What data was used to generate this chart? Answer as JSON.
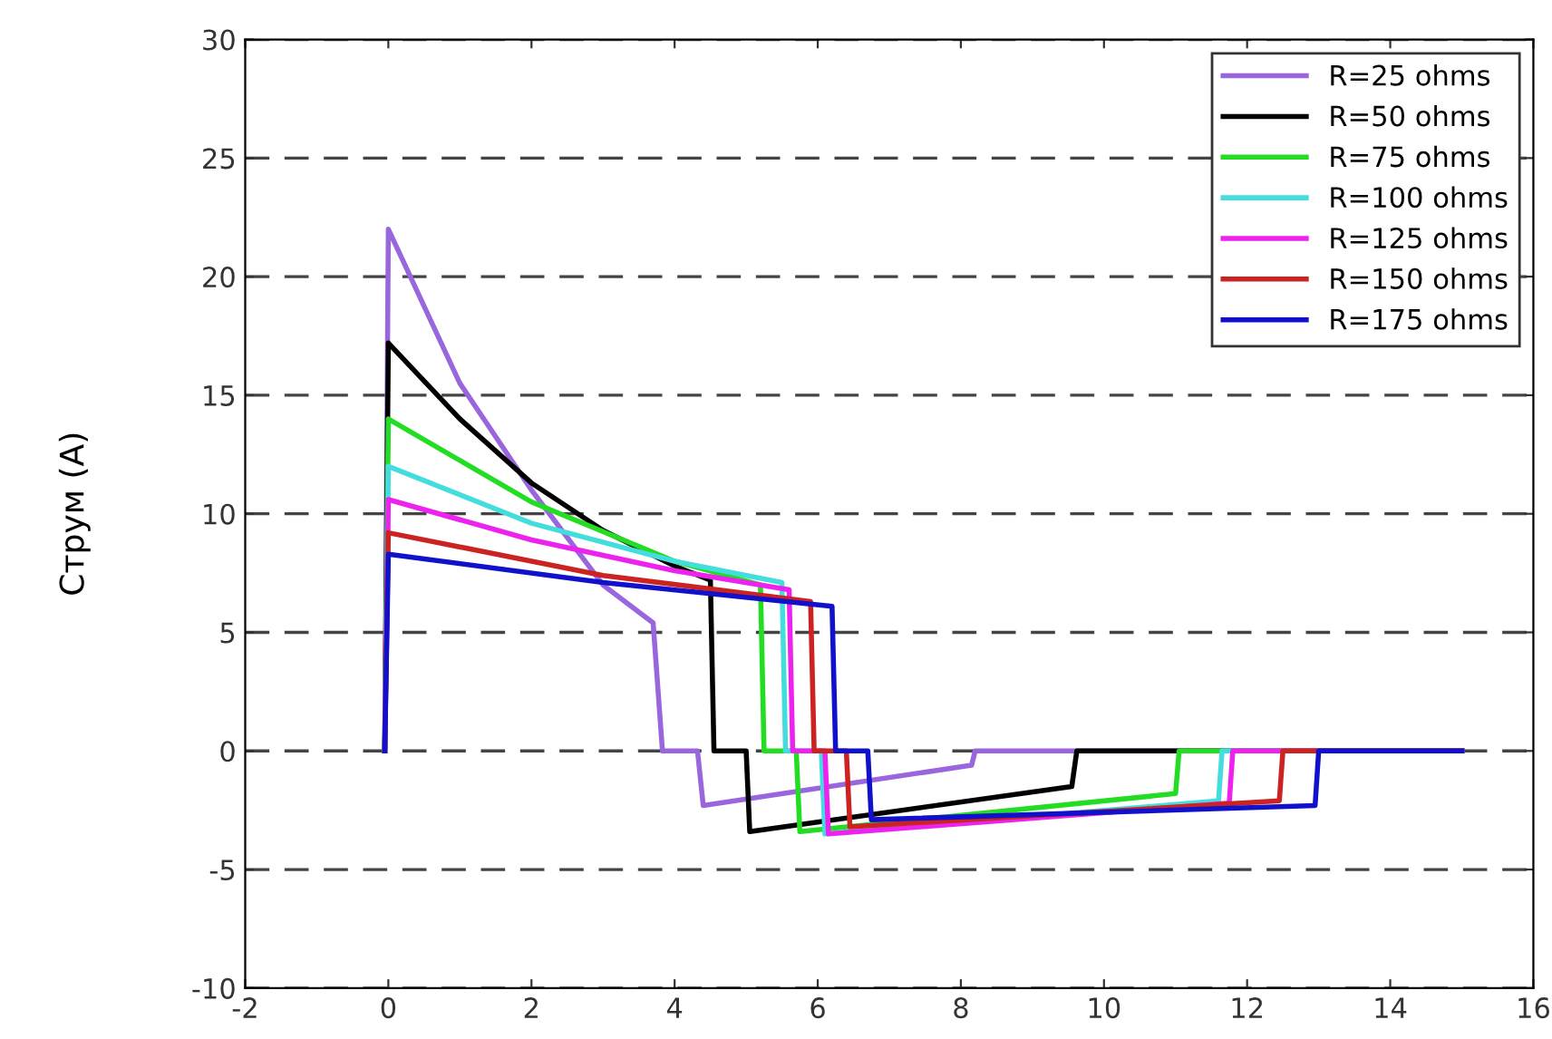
{
  "chart_data": {
    "type": "line",
    "ylabel": "Струм (A)",
    "xlim": [
      -2,
      16
    ],
    "xticks": [
      -2,
      0,
      2,
      4,
      6,
      8,
      10,
      12,
      14,
      16
    ],
    "ylim": [
      -10,
      30
    ],
    "yticks": [
      -10,
      -5,
      0,
      5,
      10,
      15,
      20,
      25,
      30
    ],
    "grid": "y",
    "legend": "top right",
    "line_style": "solid",
    "series": [
      {
        "name": "R=25 ohms",
        "color": "#9966dd",
        "x": [
          -0.05,
          0,
          1,
          2,
          3,
          3.7,
          3.83,
          4.32,
          4.4,
          8.15,
          8.2,
          15
        ],
        "values": [
          0,
          22,
          15.5,
          11,
          7,
          5.4,
          0,
          0,
          -2.3,
          -0.6,
          0,
          0
        ]
      },
      {
        "name": "R=50 ohms",
        "color": "#000000",
        "x": [
          -0.05,
          0,
          1,
          2,
          3,
          4,
          4.5,
          4.55,
          5.0,
          5.05,
          9.55,
          9.62,
          15
        ],
        "values": [
          0,
          17.2,
          14,
          11.3,
          9.3,
          7.8,
          7.2,
          0,
          0,
          -3.4,
          -1.5,
          0,
          0
        ]
      },
      {
        "name": "R=75 ohms",
        "color": "#22dd22",
        "x": [
          -0.05,
          0,
          2,
          4,
          5.2,
          5.25,
          5.7,
          5.75,
          11.0,
          11.05,
          15
        ],
        "values": [
          0,
          14,
          10.5,
          8,
          7,
          0,
          0,
          -3.4,
          -1.8,
          0,
          0
        ]
      },
      {
        "name": "R=100 ohms",
        "color": "#44dddd",
        "x": [
          -0.05,
          0,
          2,
          4,
          5.5,
          5.55,
          6.05,
          6.1,
          11.6,
          11.65,
          15
        ],
        "values": [
          0,
          12,
          9.6,
          8,
          7.1,
          0,
          0,
          -3.5,
          -2.1,
          0,
          0
        ]
      },
      {
        "name": "R=125 ohms",
        "color": "#ee22ee",
        "x": [
          -0.05,
          0,
          2,
          4,
          5.6,
          5.65,
          6.1,
          6.15,
          11.75,
          11.8,
          15
        ],
        "values": [
          0,
          10.6,
          8.9,
          7.6,
          6.8,
          0,
          0,
          -3.5,
          -2.2,
          0,
          0
        ]
      },
      {
        "name": "R=150 ohms",
        "color": "#cc2222",
        "x": [
          -0.05,
          0,
          3,
          5.9,
          5.95,
          6.4,
          6.45,
          12.45,
          12.5,
          15
        ],
        "values": [
          0,
          9.2,
          7.4,
          6.3,
          0,
          0,
          -3.2,
          -2.1,
          0,
          0
        ]
      },
      {
        "name": "R=175 ohms",
        "color": "#1111cc",
        "x": [
          -0.05,
          0,
          3,
          6.2,
          6.25,
          6.7,
          6.75,
          12.95,
          13.0,
          15
        ],
        "values": [
          0,
          8.3,
          7.1,
          6.1,
          0,
          0,
          -2.9,
          -2.3,
          0,
          0
        ]
      }
    ]
  }
}
